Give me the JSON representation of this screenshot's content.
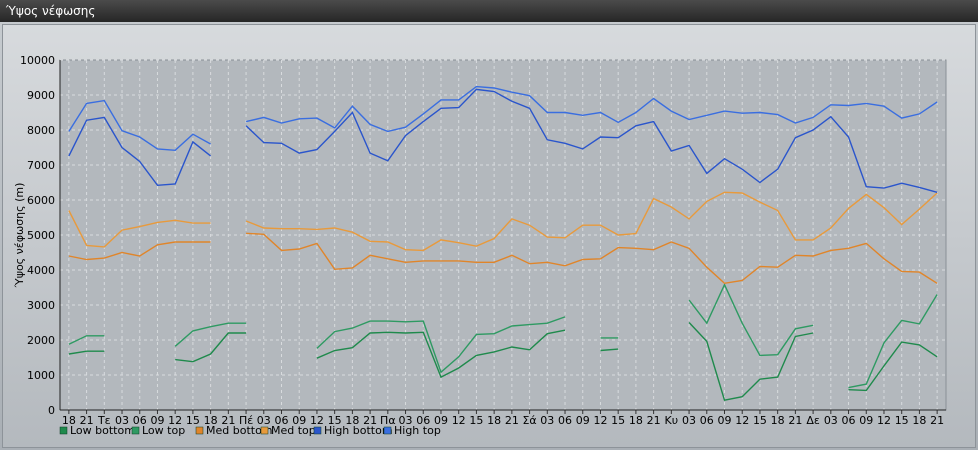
{
  "window": {
    "title": "Ύψος νέφωσης"
  },
  "chart_data": {
    "type": "line",
    "title": "",
    "xlabel": "",
    "ylabel": "Ύψος νέφωσης (m)",
    "ylim": [
      0,
      10000
    ],
    "yticks": [
      0,
      1000,
      2000,
      3000,
      4000,
      5000,
      6000,
      7000,
      8000,
      9000,
      10000
    ],
    "grid": true,
    "legend_position": "bottom-left",
    "categories": [
      "18",
      "21",
      "Τε",
      "03",
      "06",
      "09",
      "12",
      "15",
      "18",
      "21",
      "Πέ",
      "03",
      "06",
      "09",
      "12",
      "15",
      "18",
      "21",
      "Πα",
      "03",
      "06",
      "09",
      "12",
      "15",
      "18",
      "21",
      "Σά",
      "03",
      "06",
      "09",
      "12",
      "15",
      "18",
      "21",
      "Κυ",
      "03",
      "06",
      "09",
      "12",
      "15",
      "18",
      "21",
      "Δε",
      "03",
      "06",
      "09",
      "12",
      "15",
      "18",
      "21"
    ],
    "series": [
      {
        "name": "Low bottom",
        "color": "#1f8a4c",
        "values": [
          1600,
          1680,
          1680,
          null,
          null,
          null,
          1440,
          1380,
          1600,
          2200,
          2200,
          null,
          null,
          null,
          1480,
          1700,
          1780,
          2200,
          2220,
          2200,
          2220,
          940,
          1200,
          1560,
          1660,
          1800,
          1720,
          2180,
          2280,
          null,
          1700,
          1740,
          null,
          null,
          null,
          2500,
          1960,
          280,
          380,
          880,
          940,
          2100,
          2200,
          null,
          580,
          560,
          1260,
          1940,
          1860,
          1520
        ]
      },
      {
        "name": "Low top",
        "color": "#2e9a62",
        "values": [
          1880,
          2120,
          2120,
          null,
          null,
          null,
          1820,
          2260,
          2380,
          2480,
          2480,
          null,
          null,
          null,
          1760,
          2240,
          2340,
          2540,
          2540,
          2520,
          2540,
          1080,
          1520,
          2160,
          2180,
          2400,
          2440,
          2480,
          2660,
          null,
          2060,
          2060,
          null,
          null,
          null,
          3140,
          2480,
          3580,
          2480,
          1560,
          1580,
          2320,
          2420,
          null,
          640,
          740,
          1920,
          2560,
          2460,
          3300
        ]
      },
      {
        "name": "Med bottom",
        "color": "#e0852a",
        "values": [
          4400,
          4300,
          4340,
          4500,
          4400,
          4720,
          4800,
          4800,
          4800,
          null,
          5050,
          5020,
          4560,
          4600,
          4760,
          4020,
          4060,
          4420,
          4320,
          4220,
          4260,
          4260,
          4260,
          4220,
          4220,
          4420,
          4180,
          4220,
          4120,
          4300,
          4320,
          4640,
          4620,
          4580,
          4800,
          4620,
          4080,
          3620,
          3700,
          4100,
          4080,
          4420,
          4400,
          4560,
          4620,
          4760,
          4320,
          3960,
          3940,
          3620
        ]
      },
      {
        "name": "Med top",
        "color": "#e89a3c",
        "values": [
          5700,
          4700,
          4660,
          5140,
          5240,
          5360,
          5420,
          5340,
          5340,
          null,
          5400,
          5200,
          5180,
          5180,
          5160,
          5200,
          5080,
          4820,
          4800,
          4580,
          4560,
          4860,
          4780,
          4680,
          4900,
          5460,
          5280,
          4940,
          4920,
          5280,
          5280,
          5000,
          5040,
          6040,
          5800,
          5460,
          5960,
          6220,
          6200,
          5940,
          5700,
          4860,
          4860,
          5200,
          5760,
          6160,
          5780,
          5300,
          5740,
          6200
        ]
      },
      {
        "name": "High bottom",
        "color": "#2a55cc",
        "values": [
          7260,
          8280,
          8360,
          7500,
          7100,
          6420,
          6460,
          7660,
          7260,
          null,
          8120,
          7640,
          7620,
          7340,
          7440,
          7960,
          8500,
          7340,
          7120,
          7840,
          8240,
          8620,
          8640,
          9160,
          9100,
          8820,
          8620,
          7720,
          7620,
          7460,
          7800,
          7780,
          8120,
          8240,
          7400,
          7560,
          6760,
          7180,
          6880,
          6500,
          6880,
          7780,
          8000,
          8380,
          7800,
          6380,
          6340,
          6480,
          6360,
          6220
        ]
      },
      {
        "name": "High top",
        "color": "#3a6ee0",
        "values": [
          7960,
          8760,
          8840,
          7980,
          7800,
          7460,
          7420,
          7880,
          7600,
          null,
          8240,
          8360,
          8200,
          8320,
          8340,
          8060,
          8680,
          8160,
          7960,
          8080,
          8460,
          8860,
          8860,
          9240,
          9200,
          9080,
          8980,
          8500,
          8500,
          8420,
          8500,
          8220,
          8500,
          8900,
          8540,
          8300,
          8420,
          8540,
          8480,
          8500,
          8440,
          8200,
          8360,
          8720,
          8700,
          8760,
          8680,
          8340,
          8460,
          8800
        ]
      }
    ]
  }
}
